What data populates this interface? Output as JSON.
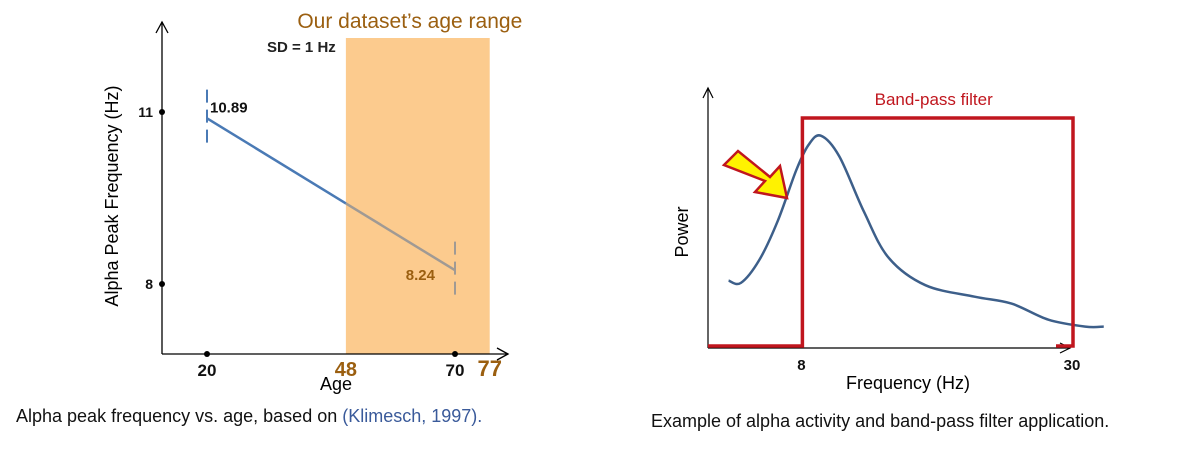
{
  "left_chart": {
    "band_title": "Our dataset’s age range",
    "sd_label": "SD = 1 Hz",
    "ylabel": "Alpha Peak Frequency (Hz)",
    "xlabel": "Age",
    "caption_text": "Alpha peak frequency vs. age, based on ",
    "caption_cite": "(Klimesch, 1997).",
    "colors": {
      "band": "#fccb8e",
      "line": "#4a7ab5",
      "line_in_band": "#a09a94",
      "band_text": "#9b5f10",
      "axis": "#000000"
    }
  },
  "right_chart": {
    "ylabel": "Power",
    "xlabel": "Frequency  (Hz)",
    "filter_label": "Band-pass filter",
    "caption": "Example of alpha activity and band-pass filter application.",
    "colors": {
      "filter": "#c0161e",
      "curve": "#3d5f8a",
      "arrow_fill": "#fff200",
      "arrow_stroke": "#c0161e"
    }
  },
  "chart_data": [
    {
      "type": "line",
      "title": "",
      "xlabel": "Age",
      "ylabel": "Alpha Peak Frequency (Hz)",
      "xlim": [
        10,
        80
      ],
      "ylim": [
        7,
        12
      ],
      "xticks": [
        {
          "value": 20,
          "label": "20"
        },
        {
          "value": 48,
          "label": "48"
        },
        {
          "value": 70,
          "label": "70"
        },
        {
          "value": 77,
          "label": "77"
        }
      ],
      "yticks": [
        {
          "value": 8,
          "label": "8"
        },
        {
          "value": 11,
          "label": "11"
        }
      ],
      "series": [
        {
          "x": [
            20,
            70
          ],
          "y": [
            10.89,
            8.24
          ]
        }
      ],
      "data_labels": [
        {
          "x": 20,
          "y": 10.89,
          "label": "10.89"
        },
        {
          "x": 70,
          "y": 8.24,
          "label": "8.24"
        }
      ],
      "error_bar_sd": 1,
      "highlight_range": [
        48,
        77
      ],
      "grid": false
    },
    {
      "type": "line",
      "title": "",
      "xlabel": "Frequency  (Hz)",
      "ylabel": "Power",
      "xlim": [
        0,
        36
      ],
      "ylim": [
        0,
        1
      ],
      "xticks": [
        {
          "value": 8,
          "label": "8"
        },
        {
          "value": 30,
          "label": "30"
        }
      ],
      "series": [
        {
          "x": [
            2,
            3,
            4.5,
            6,
            7.5,
            8.5,
            9.5,
            11,
            13,
            15,
            18,
            22,
            25,
            28,
            31,
            32.5
          ],
          "y": [
            0.28,
            0.27,
            0.37,
            0.54,
            0.76,
            0.87,
            0.91,
            0.82,
            0.58,
            0.38,
            0.26,
            0.21,
            0.18,
            0.11,
            0.08,
            0.08
          ]
        }
      ],
      "filter_band": [
        8,
        30
      ],
      "filter_label": "Band-pass filter",
      "grid": false
    }
  ]
}
